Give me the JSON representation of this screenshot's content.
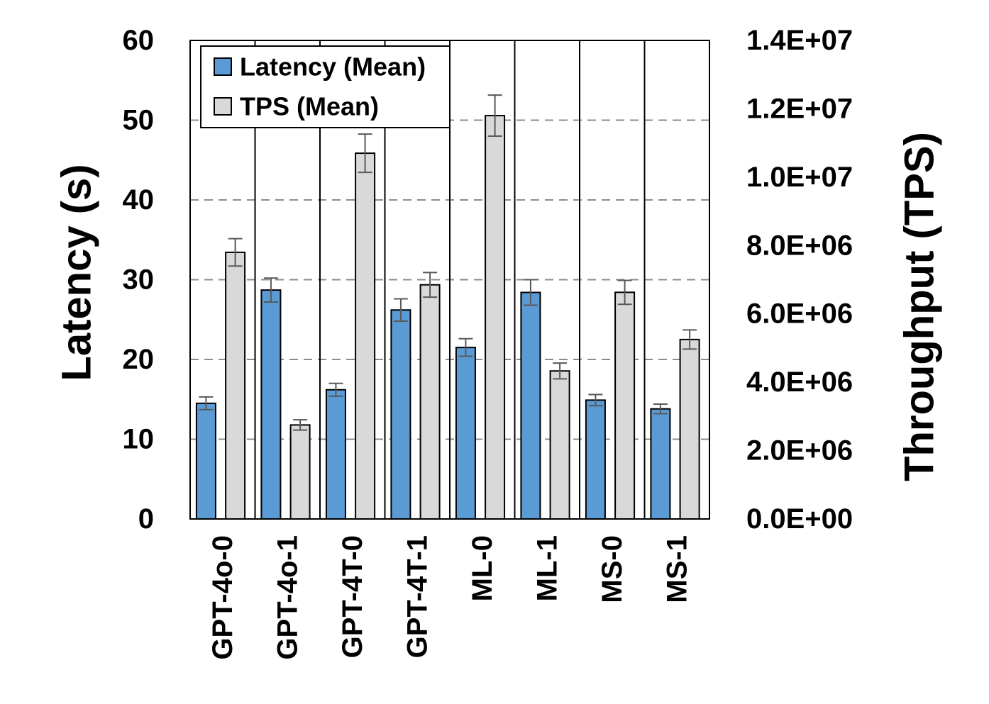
{
  "chart_data": {
    "type": "bar",
    "categories": [
      "GPT-4o-0",
      "GPT-4o-1",
      "GPT-4T-0",
      "GPT-4T-1",
      "ML-0",
      "ML-1",
      "MS-0",
      "MS-1"
    ],
    "series": [
      {
        "name": "Latency (Mean)",
        "axis": "left",
        "color": "#5b9bd5",
        "values": [
          14.5,
          28.7,
          16.2,
          26.2,
          21.5,
          28.4,
          14.9,
          13.8
        ],
        "error": [
          0.8,
          1.5,
          0.8,
          1.4,
          1.1,
          1.6,
          0.7,
          0.6
        ]
      },
      {
        "name": "TPS (Mean)",
        "axis": "right",
        "color": "#d9d9d9",
        "values": [
          7800000,
          2750000,
          10700000,
          6850000,
          11800000,
          4330000,
          6630000,
          5250000
        ],
        "error": [
          400000,
          150000,
          560000,
          360000,
          600000,
          230000,
          350000,
          280000
        ]
      }
    ],
    "ylabel_left": "Latency (s)",
    "ylabel_right": "Throughput (TPS)",
    "ylim_left": [
      0,
      60
    ],
    "ylim_right": [
      0,
      14000000
    ],
    "yticks_left": [
      0,
      10,
      20,
      30,
      40,
      50,
      60
    ],
    "yticks_left_labels": [
      "0",
      "10",
      "20",
      "30",
      "40",
      "50",
      "60"
    ],
    "yticks_right": [
      0,
      2000000,
      4000000,
      6000000,
      8000000,
      10000000,
      12000000,
      14000000
    ],
    "yticks_right_labels": [
      "0.0E+00",
      "2.0E+06",
      "4.0E+06",
      "6.0E+06",
      "8.0E+06",
      "1.0E+07",
      "1.2E+07",
      "1.4E+07"
    ],
    "grid": "horizontal dashed",
    "legend_position": "top-left"
  }
}
